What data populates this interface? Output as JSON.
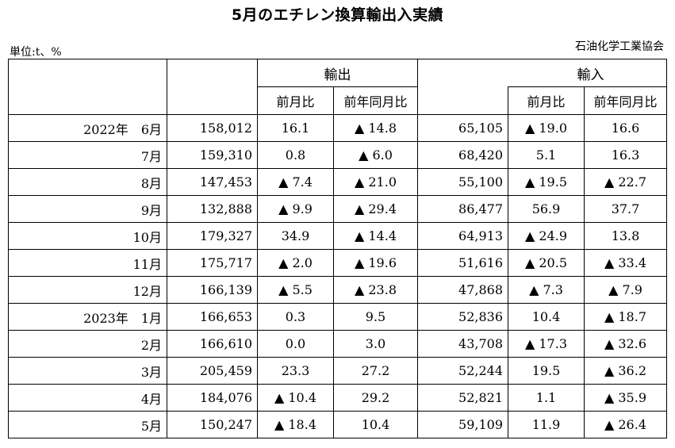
{
  "title": "5月のエチレン換算輸出入実績",
  "unit": "単位:t、%",
  "source": "石油化学工業協会",
  "headers": {
    "export": "輸出",
    "import": "輸入",
    "mom": "前月比",
    "yoy": "前年同月比"
  },
  "rows": [
    {
      "year": "2022年",
      "month": "6月",
      "export": "158,012",
      "export_mom": "16.1",
      "export_yoy": "▲ 14.8",
      "import": "65,105",
      "import_mom": "▲ 19.0",
      "import_yoy": "16.6"
    },
    {
      "year": "",
      "month": "7月",
      "export": "159,310",
      "export_mom": "0.8",
      "export_yoy": "▲ 6.0",
      "import": "68,420",
      "import_mom": "5.1",
      "import_yoy": "16.3"
    },
    {
      "year": "",
      "month": "8月",
      "export": "147,453",
      "export_mom": "▲ 7.4",
      "export_yoy": "▲ 21.0",
      "import": "55,100",
      "import_mom": "▲ 19.5",
      "import_yoy": "▲ 22.7"
    },
    {
      "year": "",
      "month": "9月",
      "export": "132,888",
      "export_mom": "▲ 9.9",
      "export_yoy": "▲ 29.4",
      "import": "86,477",
      "import_mom": "56.9",
      "import_yoy": "37.7"
    },
    {
      "year": "",
      "month": "10月",
      "export": "179,327",
      "export_mom": "34.9",
      "export_yoy": "▲ 14.4",
      "import": "64,913",
      "import_mom": "▲ 24.9",
      "import_yoy": "13.8"
    },
    {
      "year": "",
      "month": "11月",
      "export": "175,717",
      "export_mom": "▲ 2.0",
      "export_yoy": "▲ 19.6",
      "import": "51,616",
      "import_mom": "▲ 20.5",
      "import_yoy": "▲ 33.4"
    },
    {
      "year": "",
      "month": "12月",
      "export": "166,139",
      "export_mom": "▲ 5.5",
      "export_yoy": "▲ 23.8",
      "import": "47,868",
      "import_mom": "▲ 7.3",
      "import_yoy": "▲ 7.9"
    },
    {
      "year": "2023年",
      "month": "1月",
      "export": "166,653",
      "export_mom": "0.3",
      "export_yoy": "9.5",
      "import": "52,836",
      "import_mom": "10.4",
      "import_yoy": "▲ 18.7"
    },
    {
      "year": "",
      "month": "2月",
      "export": "166,610",
      "export_mom": "0.0",
      "export_yoy": "3.0",
      "import": "43,708",
      "import_mom": "▲ 17.3",
      "import_yoy": "▲ 32.6"
    },
    {
      "year": "",
      "month": "3月",
      "export": "205,459",
      "export_mom": "23.3",
      "export_yoy": "27.2",
      "import": "52,244",
      "import_mom": "19.5",
      "import_yoy": "▲ 36.2"
    },
    {
      "year": "",
      "month": "4月",
      "export": "184,076",
      "export_mom": "▲ 10.4",
      "export_yoy": "29.2",
      "import": "52,821",
      "import_mom": "1.1",
      "import_yoy": "▲ 35.9"
    },
    {
      "year": "",
      "month": "5月",
      "export": "150,247",
      "export_mom": "▲ 18.4",
      "export_yoy": "10.4",
      "import": "59,109",
      "import_mom": "11.9",
      "import_yoy": "▲ 26.4"
    }
  ]
}
